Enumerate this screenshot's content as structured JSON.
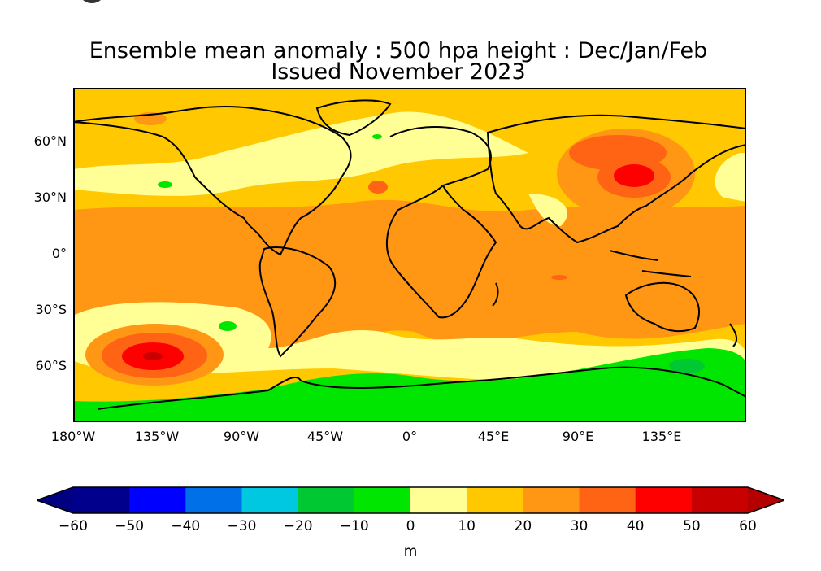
{
  "title_line1": "Ensemble mean anomaly : 500 hpa height : Dec/Jan/Feb",
  "title_line2": "Issued November 2023",
  "y_ticks": [
    "60°N",
    "30°N",
    "0°",
    "30°S",
    "60°S"
  ],
  "x_ticks": [
    "180°W",
    "135°W",
    "90°W",
    "45°W",
    "0°",
    "45°E",
    "90°E",
    "135°E"
  ],
  "colorbar": {
    "labels": [
      "−60",
      "−50",
      "−40",
      "−30",
      "−20",
      "−10",
      "0",
      "10",
      "20",
      "30",
      "40",
      "50",
      "60"
    ],
    "colors": [
      "#00008c",
      "#0000ff",
      "#0070e8",
      "#00c8e0",
      "#00c832",
      "#00e600",
      "#ffff96",
      "#ffc800",
      "#ff9614",
      "#ff6414",
      "#ff0000",
      "#c80000"
    ],
    "unit": "m"
  },
  "palette": {
    "background": "#ffc800",
    "lightyellow": "#ffff96",
    "orange": "#ff9614",
    "darkorange": "#ff6414",
    "red": "#ff0000",
    "darkred": "#c80000",
    "green": "#00e600",
    "midgreen": "#00c832"
  }
}
